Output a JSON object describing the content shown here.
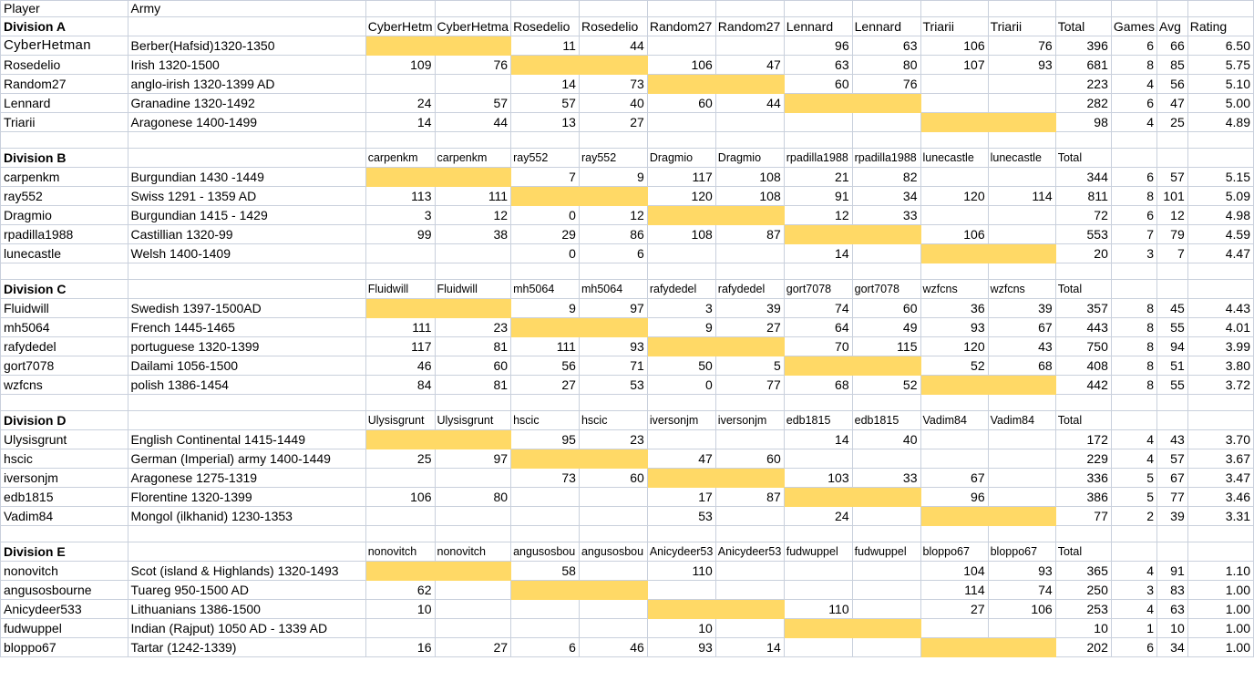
{
  "sheet": {
    "header": {
      "player": "Player",
      "army": "Army"
    },
    "highlight_color": "#ffd966",
    "divisions": [
      {
        "name": "Division A",
        "columns": [
          "CyberHetm",
          "CyberHetma",
          "Rosedelio",
          "Rosedelio",
          "Random27",
          "Random27",
          "Lennard",
          "Lennard",
          "Triarii",
          "Triarii",
          "Total",
          "Games",
          "Avg",
          "Rating"
        ],
        "rows": [
          {
            "player": "CyberHetman",
            "army": "Berber(Hafsid)1320-1350",
            "scores": [
              null,
              null,
              "11",
              "44",
              null,
              null,
              "96",
              "63",
              "106",
              "76"
            ],
            "total": "396",
            "games": "6",
            "avg": "66",
            "rating": "6.50"
          },
          {
            "player": "Rosedelio",
            "army": "Irish 1320-1500",
            "scores": [
              "109",
              "76",
              null,
              null,
              "106",
              "47",
              "63",
              "80",
              "107",
              "93"
            ],
            "total": "681",
            "games": "8",
            "avg": "85",
            "rating": "5.75"
          },
          {
            "player": "Random27",
            "army": "anglo-irish 1320-1399 AD",
            "scores": [
              null,
              null,
              "14",
              "73",
              null,
              null,
              "60",
              "76",
              null,
              null
            ],
            "total": "223",
            "games": "4",
            "avg": "56",
            "rating": "5.10"
          },
          {
            "player": "Lennard",
            "army": "Granadine 1320-1492",
            "scores": [
              "24",
              "57",
              "57",
              "40",
              "60",
              "44",
              null,
              null,
              null,
              null
            ],
            "total": "282",
            "games": "6",
            "avg": "47",
            "rating": "5.00"
          },
          {
            "player": "Triarii",
            "army": "Aragonese 1400-1499",
            "scores": [
              "14",
              "44",
              "13",
              "27",
              null,
              null,
              null,
              null,
              null,
              null
            ],
            "total": "98",
            "games": "4",
            "avg": "25",
            "rating": "4.89"
          }
        ]
      },
      {
        "name": "Division B",
        "columns": [
          "carpenkm",
          "carpenkm",
          "ray552",
          "ray552",
          "Dragmio",
          "Dragmio",
          "rpadilla1988",
          "rpadilla1988",
          "lunecastle",
          "lunecastle",
          "Total",
          "",
          "",
          ""
        ],
        "rows": [
          {
            "player": "carpenkm",
            "army": "Burgundian 1430 -1449",
            "scores": [
              null,
              null,
              "7",
              "9",
              "117",
              "108",
              "21",
              "82",
              null,
              null
            ],
            "total": "344",
            "games": "6",
            "avg": "57",
            "rating": "5.15"
          },
          {
            "player": "ray552",
            "army": "Swiss 1291 - 1359 AD",
            "scores": [
              "113",
              "111",
              null,
              null,
              "120",
              "108",
              "91",
              "34",
              "120",
              "114"
            ],
            "total": "811",
            "games": "8",
            "avg": "101",
            "rating": "5.09"
          },
          {
            "player": "Dragmio",
            "army": "Burgundian 1415 - 1429",
            "scores": [
              "3",
              "12",
              "0",
              "12",
              null,
              null,
              "12",
              "33",
              null,
              null
            ],
            "total": "72",
            "games": "6",
            "avg": "12",
            "rating": "4.98"
          },
          {
            "player": "rpadilla1988",
            "army": "Castillian 1320-99",
            "scores": [
              "99",
              "38",
              "29",
              "86",
              "108",
              "87",
              null,
              null,
              "106",
              null
            ],
            "total": "553",
            "games": "7",
            "avg": "79",
            "rating": "4.59"
          },
          {
            "player": "lunecastle",
            "army": "Welsh 1400-1409",
            "scores": [
              null,
              null,
              "0",
              "6",
              null,
              null,
              "14",
              null,
              null,
              null
            ],
            "total": "20",
            "games": "3",
            "avg": "7",
            "rating": "4.47"
          }
        ]
      },
      {
        "name": "Division C",
        "columns": [
          "Fluidwill",
          "Fluidwill",
          "mh5064",
          "mh5064",
          "rafydedel",
          "rafydedel",
          "gort7078",
          "gort7078",
          "wzfcns",
          "wzfcns",
          "Total",
          "",
          "",
          ""
        ],
        "rows": [
          {
            "player": "Fluidwill",
            "army": "Swedish 1397-1500AD",
            "scores": [
              null,
              null,
              "9",
              "97",
              "3",
              "39",
              "74",
              "60",
              "36",
              "39"
            ],
            "total": "357",
            "games": "8",
            "avg": "45",
            "rating": "4.43"
          },
          {
            "player": "mh5064",
            "army": "French 1445-1465",
            "scores": [
              "111",
              "23",
              null,
              null,
              "9",
              "27",
              "64",
              "49",
              "93",
              "67"
            ],
            "total": "443",
            "games": "8",
            "avg": "55",
            "rating": "4.01"
          },
          {
            "player": "rafydedel",
            "army": "portuguese 1320-1399",
            "scores": [
              "117",
              "81",
              "111",
              "93",
              null,
              null,
              "70",
              "115",
              "120",
              "43"
            ],
            "total": "750",
            "games": "8",
            "avg": "94",
            "rating": "3.99"
          },
          {
            "player": "gort7078",
            "army": "Dailami 1056-1500",
            "scores": [
              "46",
              "60",
              "56",
              "71",
              "50",
              "5",
              null,
              null,
              "52",
              "68"
            ],
            "total": "408",
            "games": "8",
            "avg": "51",
            "rating": "3.80"
          },
          {
            "player": "wzfcns",
            "army": "polish 1386-1454",
            "scores": [
              "84",
              "81",
              "27",
              "53",
              "0",
              "77",
              "68",
              "52",
              null,
              null
            ],
            "total": "442",
            "games": "8",
            "avg": "55",
            "rating": "3.72"
          }
        ]
      },
      {
        "name": "Division D",
        "columns": [
          "Ulysisgrunt",
          "Ulysisgrunt",
          "hscic",
          "hscic",
          "iversonjm",
          "iversonjm",
          "edb1815",
          "edb1815",
          "Vadim84",
          "Vadim84",
          "Total",
          "",
          "",
          ""
        ],
        "rows": [
          {
            "player": "Ulysisgrunt",
            "army": "English Continental 1415-1449",
            "scores": [
              null,
              null,
              "95",
              "23",
              null,
              null,
              "14",
              "40",
              null,
              null
            ],
            "total": "172",
            "games": "4",
            "avg": "43",
            "rating": "3.70"
          },
          {
            "player": "hscic",
            "army": "German (Imperial) army 1400-1449",
            "scores": [
              "25",
              "97",
              null,
              null,
              "47",
              "60",
              null,
              null,
              null,
              null
            ],
            "total": "229",
            "games": "4",
            "avg": "57",
            "rating": "3.67"
          },
          {
            "player": "iversonjm",
            "army": "Aragonese 1275-1319",
            "scores": [
              null,
              null,
              "73",
              "60",
              null,
              null,
              "103",
              "33",
              "67",
              null
            ],
            "total": "336",
            "games": "5",
            "avg": "67",
            "rating": "3.47"
          },
          {
            "player": "edb1815",
            "army": "Florentine 1320-1399",
            "scores": [
              "106",
              "80",
              null,
              null,
              "17",
              "87",
              null,
              null,
              "96",
              null
            ],
            "total": "386",
            "games": "5",
            "avg": "77",
            "rating": "3.46"
          },
          {
            "player": "Vadim84",
            "army": "Mongol (ilkhanid) 1230-1353",
            "scores": [
              null,
              null,
              null,
              null,
              "53",
              null,
              "24",
              null,
              null,
              null
            ],
            "total": "77",
            "games": "2",
            "avg": "39",
            "rating": "3.31"
          }
        ]
      },
      {
        "name": "Division E",
        "columns": [
          "nonovitch",
          "nonovitch",
          "angusosbou",
          "angusosbou",
          "Anicydeer53",
          "Anicydeer53",
          "fudwuppel",
          "fudwuppel",
          "bloppo67",
          "bloppo67",
          "Total",
          "",
          "",
          ""
        ],
        "rows": [
          {
            "player": "nonovitch",
            "army": "Scot (island & Highlands) 1320-1493",
            "scores": [
              null,
              null,
              "58",
              null,
              "110",
              null,
              null,
              null,
              "104",
              "93"
            ],
            "total": "365",
            "games": "4",
            "avg": "91",
            "rating": "1.10"
          },
          {
            "player": "angusosbourne",
            "army": "Tuareg 950-1500 AD",
            "scores": [
              "62",
              null,
              null,
              null,
              null,
              null,
              null,
              null,
              "114",
              "74"
            ],
            "total": "250",
            "games": "3",
            "avg": "83",
            "rating": "1.00"
          },
          {
            "player": "Anicydeer533",
            "army": "Lithuanians 1386-1500",
            "scores": [
              "10",
              null,
              null,
              null,
              null,
              null,
              "110",
              null,
              "27",
              "106"
            ],
            "total": "253",
            "games": "4",
            "avg": "63",
            "rating": "1.00"
          },
          {
            "player": "fudwuppel",
            "army": "Indian (Rajput) 1050 AD - 1339 AD",
            "scores": [
              null,
              null,
              null,
              null,
              "10",
              null,
              null,
              null,
              null,
              null
            ],
            "total": "10",
            "games": "1",
            "avg": "10",
            "rating": "1.00"
          },
          {
            "player": "bloppo67",
            "army": "Tartar (1242-1339)",
            "scores": [
              "16",
              "27",
              "6",
              "46",
              "93",
              "14",
              null,
              null,
              null,
              null
            ],
            "total": "202",
            "games": "6",
            "avg": "34",
            "rating": "1.00"
          }
        ]
      }
    ]
  }
}
